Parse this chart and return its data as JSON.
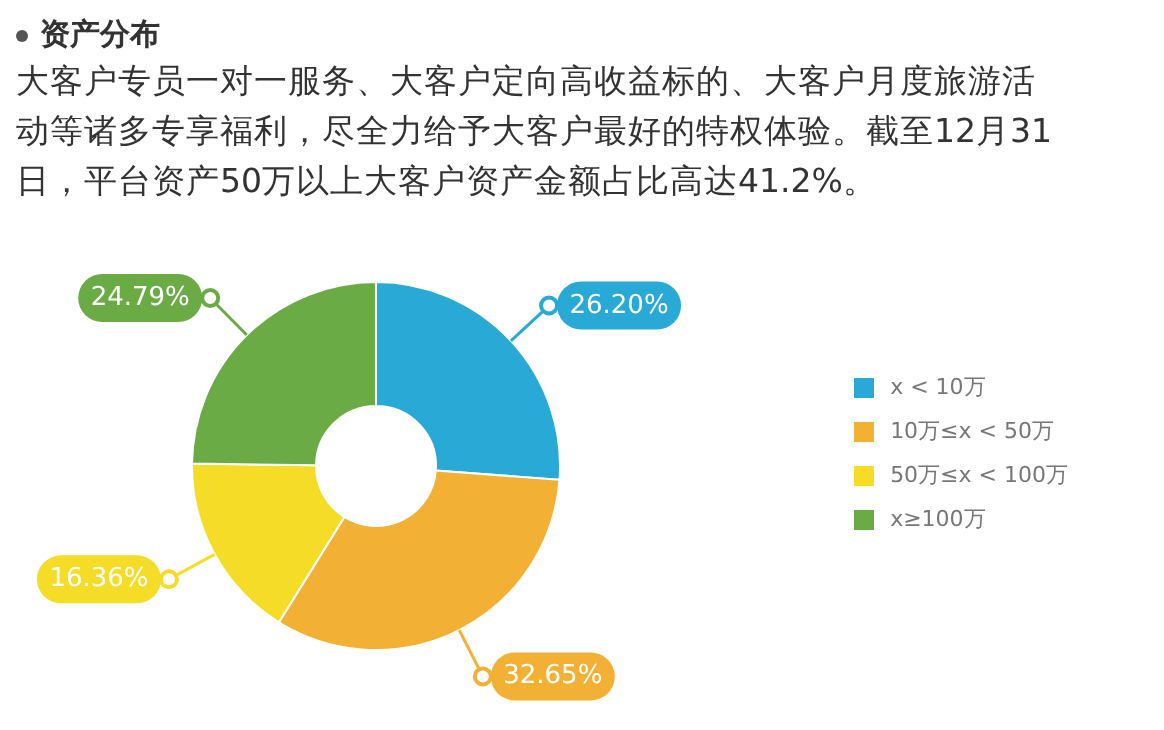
{
  "chart_data": {
    "type": "donut",
    "title": "资产分布",
    "subtitle": "大客户专员一对一服务、大客户定向高收益标的、大客户月度旅游活动等诸多专享福利，尽全力给予大客户最好的特权体验。截至12月31日，平台资产50万以上大客户资产金额占比高达41.2%。",
    "categories": [
      "x < 10万",
      "10万≤x < 50万",
      "50万≤x < 100万",
      "x≥100万"
    ],
    "values": [
      26.2,
      32.65,
      16.36,
      24.79
    ],
    "colors": [
      "#29a9d6",
      "#f2b134",
      "#f4dc27",
      "#6aab46"
    ],
    "value_labels": [
      "26.20%",
      "32.65%",
      "16.36%",
      "24.79%"
    ],
    "legend": "right"
  }
}
